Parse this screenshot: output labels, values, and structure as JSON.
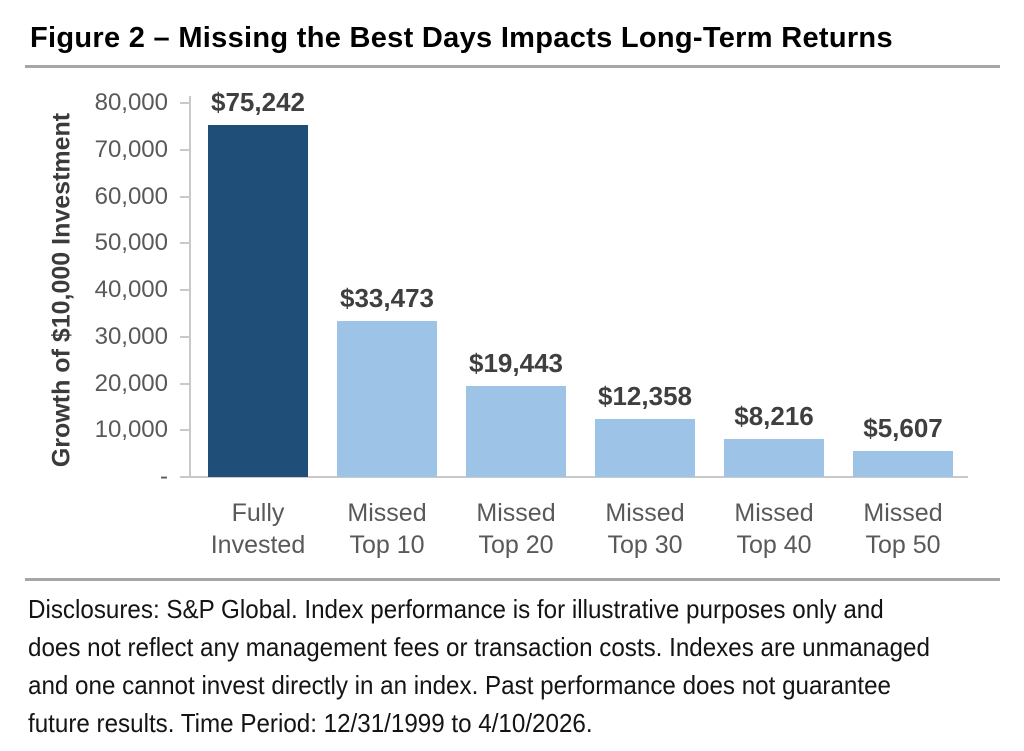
{
  "title": "Figure 2 – Missing the Best Days Impacts Long-Term Returns",
  "chart_data": {
    "type": "bar",
    "title": "Figure 2 – Missing the Best Days Impacts Long-Term Returns",
    "categories": [
      "Fully\nInvested",
      "Missed\nTop 10",
      "Missed\nTop 20",
      "Missed\nTop 30",
      "Missed\nTop 40",
      "Missed\nTop 50"
    ],
    "values": [
      75242,
      33473,
      19443,
      12358,
      8216,
      5607
    ],
    "value_labels": [
      "$75,242",
      "$33,473",
      "$19,443",
      "$12,358",
      "$8,216",
      "$5,607"
    ],
    "xlabel": "",
    "ylabel": "Growth of $10,000 Investment",
    "ylim": [
      0,
      80000
    ],
    "ytick_values": [
      80000,
      70000,
      60000,
      50000,
      40000,
      30000,
      20000,
      10000,
      0
    ],
    "ytick_labels": [
      "80,000",
      "70,000",
      "60,000",
      "50,000",
      "40,000",
      "30,000",
      "20,000",
      "10,000",
      "-"
    ],
    "bar_colors": [
      "#1f4e79",
      "#9dc3e6",
      "#9dc3e6",
      "#9dc3e6",
      "#9dc3e6",
      "#9dc3e6"
    ],
    "grid": false,
    "legend": false
  },
  "footer": {
    "disclosure_lines": [
      "Disclosures: S&P Global. Index performance is for illustrative purposes only and",
      "does not reflect any management fees or transaction costs. Indexes are unmanaged",
      "and one cannot invest directly in an index. Past performance does not guarantee",
      "future results. Time Period: 12/31/1999 to 4/10/2026."
    ]
  },
  "colors": {
    "highlight_bar": "#1f4e79",
    "default_bar": "#9dc3e6",
    "axis_line": "#c9c9c9",
    "divider": "#a6a6a6",
    "tick_text": "#595959",
    "value_text": "#3f3f3f"
  }
}
